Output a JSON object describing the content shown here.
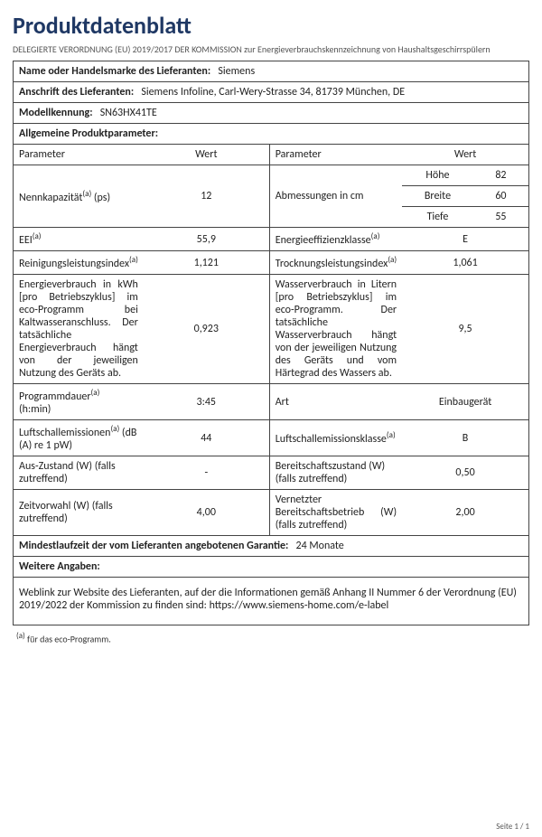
{
  "title": "Produktdatenblatt",
  "regulation": "DELEGIERTE VERORDNUNG (EU) 2019/2017 DER KOMMISSION zur Energieverbrauchskennzeichnung von Haushaltsgeschirrspülern",
  "supplier_name_label": "Name oder Handelsmarke des Lieferanten:",
  "supplier_name": "Siemens",
  "supplier_addr_label": "Anschrift des Lieferanten:",
  "supplier_addr": "Siemens Infoline, Carl-Wery-Strasse 34, 81739 München, DE",
  "model_label": "Modellkennung:",
  "model": "SN63HX41TE",
  "general_params_label": "Allgemeine Produktparameter:",
  "col": {
    "param": "Parameter",
    "val": "Wert"
  },
  "dims": {
    "label": "Abmessungen in cm",
    "h_l": "Höhe",
    "h_v": "82",
    "w_l": "Breite",
    "w_v": "60",
    "d_l": "Tiefe",
    "d_v": "55"
  },
  "cap": {
    "label_pre": "Nennkapazität",
    "label_post": "  (ps)",
    "val": "12"
  },
  "eei": {
    "label": "EEI",
    "val": "55,9"
  },
  "eeclass": {
    "label_pre": "Energieeffizienzklasse",
    "val": "E"
  },
  "clean": {
    "label_pre": "Reinigungsleistungsindex",
    "val": "1,121"
  },
  "dry": {
    "label_pre": "Trocknungsleistungsindex",
    "val": "1,061"
  },
  "energy": {
    "label": "Energieverbrauch in kWh [pro Betriebszyklus] im eco-Programm bei Kaltwasseranschluss. Der tatsächliche Energieverbrauch hängt von der jeweiligen Nutzung des Geräts ab.",
    "val": "0,923"
  },
  "water": {
    "label": "Wasserverbrauch in Litern [pro Betriebszyklus] im eco-Programm. Der tatsächliche Wasserverbrauch hängt von der jeweiligen Nutzung des Geräts und vom Härtegrad des Wassers ab.",
    "val": "9,5"
  },
  "progdur": {
    "label_pre": "Programmdauer",
    "label_post": " (h:min)",
    "val": "3:45"
  },
  "type": {
    "label": "Art",
    "val": "Einbaugerät"
  },
  "noise": {
    "label_pre": "Luftschallemissionen",
    "label_post": "  (dB (A) re 1 pW)",
    "val": "44"
  },
  "noiseclass": {
    "label_pre": "Luftschallemissionsklasse",
    "val": "B"
  },
  "off": {
    "label": "Aus-Zustand (W) (falls zutreffend)",
    "val": "-"
  },
  "standby": {
    "label": "Bereitschaftszustand (W) (falls zutreffend)",
    "val": "0,50"
  },
  "delay": {
    "label": "Zeitvorwahl (W) (falls zutreffend)",
    "val": "4,00"
  },
  "netstandby": {
    "label": "Vernetzter Bereitschaftsbetrieb (W) (falls zutreffend)",
    "val": "2,00"
  },
  "warranty_label": "Mindestlaufzeit der vom Lieferanten angebotenen Garantie:",
  "warranty": "24 Monate",
  "more_label": "Weitere Angaben:",
  "weblink": "Weblink zur Website des Lieferanten, auf der die Informationen gemäß Anhang II Nummer 6 der Verordnung (EU) 2019/2022 der Kommission zu finden sind:  https://www.siemens-home.com/e-label",
  "footnote_pre": "(a)",
  "footnote": " für das eco-Programm.",
  "page": "Seite 1 / 1",
  "sup_a": "(a)"
}
